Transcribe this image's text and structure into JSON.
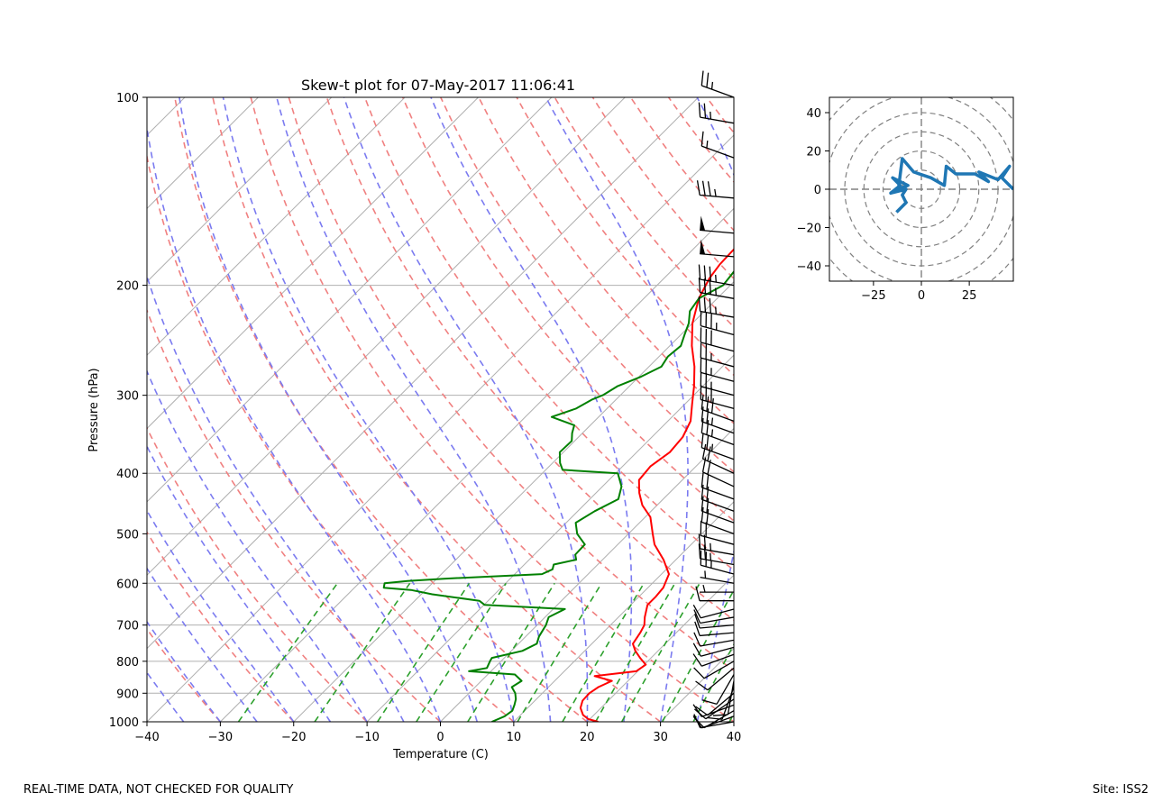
{
  "footer": {
    "left_text": "REAL-TIME DATA, NOT CHECKED FOR QUALITY",
    "right_text": "Site: ISS2"
  },
  "chart_data": [
    {
      "type": "skew-t",
      "title": "Skew-t plot for 07-May-2017 11:06:41",
      "xlabel": "Temperature (C)",
      "ylabel": "Pressure (hPa)",
      "xlim": [
        -40,
        40
      ],
      "ylim": [
        1000,
        100
      ],
      "y_scale": "log",
      "x_ticks": [
        -40,
        -30,
        -20,
        -10,
        0,
        10,
        20,
        30,
        40
      ],
      "x_tick_labels": [
        "−40",
        "−30",
        "−20",
        "−10",
        "0",
        "10",
        "20",
        "30",
        "40"
      ],
      "y_ticks": [
        1000,
        900,
        800,
        700,
        600,
        500,
        400,
        300,
        200,
        100
      ],
      "y_tick_labels": [
        "1000",
        "900",
        "800",
        "700",
        "600",
        "500",
        "400",
        "300",
        "200",
        "100"
      ],
      "grid": true,
      "colors": {
        "temperature": "#ff0000",
        "dewpoint": "#008000",
        "dry_adiabats": "#f08080",
        "moist_adiabats": "#7b7bf0",
        "mixing_ratio": "#2ca02c",
        "isotherms": "#aaaaaa",
        "barbs": "#000000"
      },
      "series": [
        {
          "key": "temperature",
          "points": [
            [
              1000,
              21.5
            ],
            [
              990,
              19.8
            ],
            [
              975,
              18.5
            ],
            [
              950,
              17.2
            ],
            [
              925,
              16.5
            ],
            [
              900,
              16.4
            ],
            [
              880,
              16.8
            ],
            [
              860,
              17.8
            ],
            [
              845,
              14.8
            ],
            [
              830,
              19.8
            ],
            [
              810,
              20.2
            ],
            [
              790,
              18.5
            ],
            [
              770,
              16.9
            ],
            [
              750,
              15.6
            ],
            [
              720,
              15.1
            ],
            [
              700,
              14.6
            ],
            [
              680,
              13.6
            ],
            [
              650,
              12.3
            ],
            [
              630,
              12.3
            ],
            [
              610,
              12.1
            ],
            [
              580,
              11.0
            ],
            [
              550,
              8.3
            ],
            [
              520,
              5.0
            ],
            [
              500,
              3.3
            ],
            [
              470,
              0.7
            ],
            [
              450,
              -2.0
            ],
            [
              430,
              -4.1
            ],
            [
              410,
              -5.9
            ],
            [
              390,
              -6.2
            ],
            [
              370,
              -5.5
            ],
            [
              350,
              -5.8
            ],
            [
              330,
              -6.9
            ],
            [
              310,
              -9.0
            ],
            [
              290,
              -11.2
            ],
            [
              270,
              -13.8
            ],
            [
              250,
              -17.0
            ],
            [
              230,
              -20.0
            ],
            [
              210,
              -22.5
            ],
            [
              195,
              -23.8
            ],
            [
              185,
              -24.3
            ],
            [
              170,
              -24.5
            ],
            [
              160,
              -24.1
            ],
            [
              150,
              -23.7
            ],
            [
              145,
              -21.3
            ],
            [
              138,
              -20.8
            ],
            [
              130,
              -21.5
            ],
            [
              120,
              -23.0
            ],
            [
              115,
              -23.6
            ],
            [
              110,
              -24.3
            ],
            [
              105,
              -24.8
            ],
            [
              100,
              -26.0
            ]
          ]
        },
        {
          "key": "dewpoint",
          "points": [
            [
              1000,
              7.0
            ],
            [
              980,
              8.0
            ],
            [
              960,
              8.3
            ],
            [
              940,
              7.8
            ],
            [
              920,
              7.2
            ],
            [
              900,
              6.3
            ],
            [
              880,
              5.0
            ],
            [
              860,
              5.5
            ],
            [
              840,
              3.7
            ],
            [
              830,
              -3.0
            ],
            [
              820,
              -1.0
            ],
            [
              800,
              -1.5
            ],
            [
              790,
              -1.7
            ],
            [
              770,
              1.5
            ],
            [
              750,
              2.5
            ],
            [
              730,
              1.8
            ],
            [
              700,
              1.2
            ],
            [
              680,
              0.5
            ],
            [
              660,
              1.6
            ],
            [
              650,
              -9.9
            ],
            [
              640,
              -11.2
            ],
            [
              625,
              -18.5
            ],
            [
              615,
              -22.0
            ],
            [
              610,
              -26.0
            ],
            [
              600,
              -26.5
            ],
            [
              595,
              -23.7
            ],
            [
              590,
              -19.0
            ],
            [
              580,
              -6.3
            ],
            [
              570,
              -5.5
            ],
            [
              560,
              -6.0
            ],
            [
              550,
              -3.6
            ],
            [
              540,
              -4.4
            ],
            [
              520,
              -4.5
            ],
            [
              500,
              -7.0
            ],
            [
              480,
              -8.7
            ],
            [
              460,
              -7.7
            ],
            [
              440,
              -6.1
            ],
            [
              420,
              -7.4
            ],
            [
              400,
              -9.7
            ],
            [
              395,
              -17.7
            ],
            [
              385,
              -19.0
            ],
            [
              370,
              -20.5
            ],
            [
              355,
              -20.4
            ],
            [
              345,
              -21.4
            ],
            [
              335,
              -22.2
            ],
            [
              325,
              -26.4
            ],
            [
              315,
              -24.2
            ],
            [
              305,
              -23.3
            ],
            [
              300,
              -22.4
            ],
            [
              290,
              -21.6
            ],
            [
              280,
              -19.7
            ],
            [
              270,
              -18.3
            ],
            [
              260,
              -18.8
            ],
            [
              250,
              -18.5
            ],
            [
              240,
              -19.5
            ],
            [
              230,
              -20.5
            ],
            [
              220,
              -22.0
            ],
            [
              210,
              -22.5
            ],
            [
              200,
              -21.0
            ],
            [
              190,
              -21.4
            ],
            [
              180,
              -22.5
            ],
            [
              170,
              -23.0
            ],
            [
              160,
              -24.5
            ],
            [
              150,
              -26.5
            ],
            [
              140,
              -29.0
            ],
            [
              130,
              -31.7
            ],
            [
              125,
              -32.6
            ],
            [
              120,
              -32.7
            ],
            [
              115,
              -32.4
            ],
            [
              110,
              -32.8
            ],
            [
              105,
              -33.4
            ],
            [
              100,
              -34.5
            ]
          ]
        }
      ],
      "wind_barbs": [
        {
          "p": 1000,
          "speed": 10,
          "dir": 260
        },
        {
          "p": 980,
          "speed": 10,
          "dir": 250
        },
        {
          "p": 960,
          "speed": 10,
          "dir": 240
        },
        {
          "p": 940,
          "speed": 10,
          "dir": 250
        },
        {
          "p": 920,
          "speed": 10,
          "dir": 235
        },
        {
          "p": 900,
          "speed": 10,
          "dir": 230
        },
        {
          "p": 880,
          "speed": 10,
          "dir": 200
        },
        {
          "p": 860,
          "speed": 10,
          "dir": 190
        },
        {
          "p": 840,
          "speed": 10,
          "dir": 210
        },
        {
          "p": 820,
          "speed": 10,
          "dir": 230
        },
        {
          "p": 800,
          "speed": 10,
          "dir": 240
        },
        {
          "p": 780,
          "speed": 10,
          "dir": 250
        },
        {
          "p": 760,
          "speed": 10,
          "dir": 255
        },
        {
          "p": 740,
          "speed": 10,
          "dir": 260
        },
        {
          "p": 720,
          "speed": 10,
          "dir": 265
        },
        {
          "p": 700,
          "speed": 10,
          "dir": 265
        },
        {
          "p": 680,
          "speed": 10,
          "dir": 260
        },
        {
          "p": 660,
          "speed": 10,
          "dir": 255
        },
        {
          "p": 640,
          "speed": 10,
          "dir": 270
        },
        {
          "p": 620,
          "speed": 5,
          "dir": 270
        },
        {
          "p": 600,
          "speed": 5,
          "dir": 280
        },
        {
          "p": 580,
          "speed": 25,
          "dir": 285
        },
        {
          "p": 560,
          "speed": 25,
          "dir": 280
        },
        {
          "p": 540,
          "speed": 25,
          "dir": 280
        },
        {
          "p": 520,
          "speed": 20,
          "dir": 285
        },
        {
          "p": 500,
          "speed": 20,
          "dir": 290
        },
        {
          "p": 480,
          "speed": 20,
          "dir": 290
        },
        {
          "p": 460,
          "speed": 20,
          "dir": 290
        },
        {
          "p": 440,
          "speed": 20,
          "dir": 290
        },
        {
          "p": 420,
          "speed": 20,
          "dir": 295
        },
        {
          "p": 400,
          "speed": 20,
          "dir": 295
        },
        {
          "p": 380,
          "speed": 25,
          "dir": 290
        },
        {
          "p": 360,
          "speed": 25,
          "dir": 290
        },
        {
          "p": 345,
          "speed": 25,
          "dir": 290
        },
        {
          "p": 330,
          "speed": 30,
          "dir": 290
        },
        {
          "p": 315,
          "speed": 30,
          "dir": 285
        },
        {
          "p": 300,
          "speed": 25,
          "dir": 285
        },
        {
          "p": 285,
          "speed": 25,
          "dir": 285
        },
        {
          "p": 270,
          "speed": 25,
          "dir": 285
        },
        {
          "p": 255,
          "speed": 30,
          "dir": 285
        },
        {
          "p": 240,
          "speed": 35,
          "dir": 285
        },
        {
          "p": 225,
          "speed": 35,
          "dir": 280
        },
        {
          "p": 210,
          "speed": 35,
          "dir": 280
        },
        {
          "p": 200,
          "speed": 35,
          "dir": 280
        },
        {
          "p": 180,
          "speed": 50,
          "dir": 275
        },
        {
          "p": 165,
          "speed": 50,
          "dir": 275
        },
        {
          "p": 145,
          "speed": 35,
          "dir": 275
        },
        {
          "p": 125,
          "speed": 15,
          "dir": 290
        },
        {
          "p": 110,
          "speed": 25,
          "dir": 280
        },
        {
          "p": 100,
          "speed": 25,
          "dir": 290
        }
      ]
    },
    {
      "type": "hodograph",
      "xlim": [
        -48,
        48
      ],
      "ylim": [
        -48,
        48
      ],
      "x_ticks": [
        -25,
        0,
        25
      ],
      "x_tick_labels": [
        "−25",
        "0",
        "25"
      ],
      "y_ticks": [
        -40,
        -20,
        0,
        20,
        40
      ],
      "y_tick_labels": [
        "−40",
        "−20",
        "0",
        "20",
        "40"
      ],
      "rings": [
        10,
        20,
        30,
        40,
        50,
        60
      ],
      "line_color": "#1f77b4",
      "points": [
        [
          -13,
          -12
        ],
        [
          -8,
          -7
        ],
        [
          -10,
          -3
        ],
        [
          -8,
          0
        ],
        [
          -16,
          -2
        ],
        [
          -11,
          2
        ],
        [
          -15,
          6
        ],
        [
          -7,
          2
        ],
        [
          -12,
          0
        ],
        [
          -10,
          16
        ],
        [
          -4,
          9
        ],
        [
          5,
          6
        ],
        [
          12,
          2
        ],
        [
          13,
          12
        ],
        [
          18,
          8
        ],
        [
          28,
          8
        ],
        [
          35,
          4
        ],
        [
          30,
          9
        ],
        [
          40,
          5
        ],
        [
          46,
          12
        ],
        [
          42,
          6
        ],
        [
          48,
          0
        ]
      ]
    }
  ]
}
